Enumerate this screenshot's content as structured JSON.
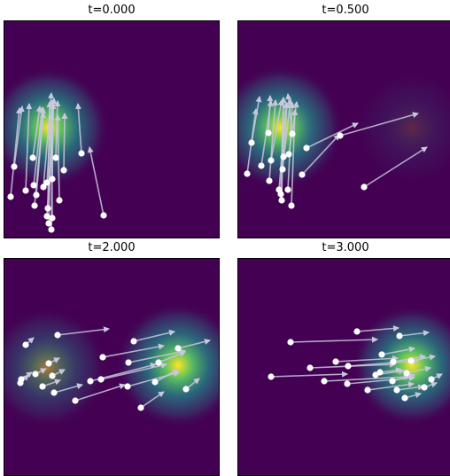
{
  "colors": {
    "background": "#440154",
    "density_mid": "#21918c",
    "density_high": "#5ec962",
    "density_peak": "#fde725",
    "arrow": "#c8c8dc",
    "point": "#ffffff",
    "frame": "#000000"
  },
  "chart_data": [
    {
      "type": "scatter",
      "title": "t=0.000",
      "xlim": [
        0,
        242
      ],
      "ylim": [
        0,
        244
      ],
      "grid": false,
      "density": [
        {
          "x": 50,
          "y": 124,
          "sigma": 26,
          "amp": 1.0
        }
      ],
      "points": [
        {
          "x": 7,
          "y": 46,
          "dx": 10,
          "dy": 100
        },
        {
          "x": 11,
          "y": 80,
          "dx": 9,
          "dy": 68
        },
        {
          "x": 24,
          "y": 53,
          "dx": 4,
          "dy": 98
        },
        {
          "x": 32,
          "y": 90,
          "dx": 8,
          "dy": 58
        },
        {
          "x": 33,
          "y": 59,
          "dx": 10,
          "dy": 88
        },
        {
          "x": 36,
          "y": 48,
          "dx": 8,
          "dy": 93
        },
        {
          "x": 34,
          "y": 36,
          "dx": 10,
          "dy": 110
        },
        {
          "x": 44,
          "y": 57,
          "dx": 9,
          "dy": 106
        },
        {
          "x": 48,
          "y": 62,
          "dx": 6,
          "dy": 93
        },
        {
          "x": 49,
          "y": 33,
          "dx": 2,
          "dy": 120
        },
        {
          "x": 48,
          "y": 24,
          "dx": 8,
          "dy": 133
        },
        {
          "x": 50,
          "y": 16,
          "dx": 4,
          "dy": 138
        },
        {
          "x": 53,
          "y": 9,
          "dx": 2,
          "dy": 142
        },
        {
          "x": 54,
          "y": 22,
          "dx": -1,
          "dy": 117
        },
        {
          "x": 54,
          "y": 66,
          "dx": 0,
          "dy": 89
        },
        {
          "x": 58,
          "y": 90,
          "dx": 2,
          "dy": 64
        },
        {
          "x": 62,
          "y": 42,
          "dx": -2,
          "dy": 96
        },
        {
          "x": 67,
          "y": 76,
          "dx": 1,
          "dy": 64
        },
        {
          "x": 87,
          "y": 95,
          "dx": -4,
          "dy": 56
        },
        {
          "x": 112,
          "y": 25,
          "dx": -16,
          "dy": 77
        }
      ]
    },
    {
      "type": "scatter",
      "title": "t=0.500",
      "xlim": [
        0,
        242
      ],
      "ylim": [
        0,
        244
      ],
      "grid": false,
      "density": [
        {
          "x": 48,
          "y": 124,
          "sigma": 27,
          "amp": 1.0
        },
        {
          "x": 196,
          "y": 124,
          "sigma": 24,
          "amp": 0.16
        }
      ],
      "points": [
        {
          "x": 10,
          "y": 72,
          "dx": 10,
          "dy": 73
        },
        {
          "x": 15,
          "y": 107,
          "dx": 9,
          "dy": 52
        },
        {
          "x": 26,
          "y": 81,
          "dx": 11,
          "dy": 73
        },
        {
          "x": 34,
          "y": 118,
          "dx": 2,
          "dy": 42
        },
        {
          "x": 35,
          "y": 64,
          "dx": 7,
          "dy": 91
        },
        {
          "x": 37,
          "y": 87,
          "dx": 12,
          "dy": 68
        },
        {
          "x": 46,
          "y": 54,
          "dx": 8,
          "dy": 98
        },
        {
          "x": 50,
          "y": 77,
          "dx": 9,
          "dy": 79
        },
        {
          "x": 48,
          "y": 49,
          "dx": 3,
          "dy": 109
        },
        {
          "x": 49,
          "y": 42,
          "dx": 2,
          "dy": 116
        },
        {
          "x": 51,
          "y": 91,
          "dx": 4,
          "dy": 61
        },
        {
          "x": 56,
          "y": 54,
          "dx": 5,
          "dy": 98
        },
        {
          "x": 57,
          "y": 94,
          "dx": 9,
          "dy": 59
        },
        {
          "x": 60,
          "y": 36,
          "dx": 4,
          "dy": 108
        },
        {
          "x": 61,
          "y": 117,
          "dx": -5,
          "dy": 45
        },
        {
          "x": 72,
          "y": 71,
          "dx": 42,
          "dy": 45
        },
        {
          "x": 77,
          "y": 101,
          "dx": 58,
          "dy": 28
        },
        {
          "x": 115,
          "y": 115,
          "dx": 88,
          "dy": 25
        },
        {
          "x": 142,
          "y": 57,
          "dx": 71,
          "dy": 45
        }
      ]
    },
    {
      "type": "scatter",
      "title": "t=2.000",
      "xlim": [
        0,
        242
      ],
      "ylim": [
        0,
        244
      ],
      "grid": false,
      "density": [
        {
          "x": 48,
          "y": 121,
          "sigma": 26,
          "amp": 0.52
        },
        {
          "x": 196,
          "y": 124,
          "sigma": 27,
          "amp": 1.0
        }
      ],
      "points": [
        {
          "x": 18,
          "y": 104,
          "dx": 9,
          "dy": 9
        },
        {
          "x": 19,
          "y": 108,
          "dx": 12,
          "dy": 8
        },
        {
          "x": 24,
          "y": 147,
          "dx": 9,
          "dy": 8
        },
        {
          "x": 35,
          "y": 114,
          "dx": 12,
          "dy": 6
        },
        {
          "x": 43,
          "y": 100,
          "dx": 20,
          "dy": 7
        },
        {
          "x": 50,
          "y": 126,
          "dx": 12,
          "dy": 6
        },
        {
          "x": 54,
          "y": 112,
          "dx": 14,
          "dy": 7
        },
        {
          "x": 56,
          "y": 93,
          "dx": 32,
          "dy": 9
        },
        {
          "x": 60,
          "y": 158,
          "dx": 58,
          "dy": 7
        },
        {
          "x": 80,
          "y": 84,
          "dx": 56,
          "dy": 18
        },
        {
          "x": 97,
          "y": 106,
          "dx": 74,
          "dy": 19
        },
        {
          "x": 109,
          "y": 108,
          "dx": 74,
          "dy": 17
        },
        {
          "x": 111,
          "y": 133,
          "dx": 69,
          "dy": 13
        },
        {
          "x": 139,
          "y": 100,
          "dx": 58,
          "dy": 16
        },
        {
          "x": 140,
          "y": 127,
          "dx": 64,
          "dy": 13
        },
        {
          "x": 146,
          "y": 151,
          "dx": 46,
          "dy": 11
        },
        {
          "x": 154,
          "y": 76,
          "dx": 26,
          "dy": 18
        },
        {
          "x": 170,
          "y": 105,
          "dx": 26,
          "dy": 14
        },
        {
          "x": 174,
          "y": 127,
          "dx": 30,
          "dy": 12
        },
        {
          "x": 196,
          "y": 143,
          "dx": 36,
          "dy": 9
        },
        {
          "x": 205,
          "y": 97,
          "dx": 15,
          "dy": 12
        }
      ]
    },
    {
      "type": "scatter",
      "title": "t=3.000",
      "xlim": [
        0,
        242
      ],
      "ylim": [
        0,
        244
      ],
      "grid": false,
      "density": [
        {
          "x": 196,
          "y": 124,
          "sigma": 26,
          "amp": 1.0
        }
      ],
      "points": [
        {
          "x": 37,
          "y": 111,
          "dx": 86,
          "dy": 3
        },
        {
          "x": 59,
          "y": 150,
          "dx": 98,
          "dy": 3
        },
        {
          "x": 81,
          "y": 121,
          "dx": 96,
          "dy": 4
        },
        {
          "x": 97,
          "y": 106,
          "dx": 96,
          "dy": 5
        },
        {
          "x": 110,
          "y": 128,
          "dx": 70,
          "dy": 4
        },
        {
          "x": 123,
          "y": 103,
          "dx": 76,
          "dy": 7
        },
        {
          "x": 124,
          "y": 123,
          "dx": 79,
          "dy": 6
        },
        {
          "x": 134,
          "y": 162,
          "dx": 47,
          "dy": 4
        },
        {
          "x": 146,
          "y": 96,
          "dx": 52,
          "dy": 7
        },
        {
          "x": 155,
          "y": 113,
          "dx": 32,
          "dy": 5
        },
        {
          "x": 160,
          "y": 116,
          "dx": 24,
          "dy": 3
        },
        {
          "x": 162,
          "y": 136,
          "dx": 37,
          "dy": 7
        },
        {
          "x": 174,
          "y": 106,
          "dx": 25,
          "dy": 7
        },
        {
          "x": 175,
          "y": 128,
          "dx": 36,
          "dy": 6
        },
        {
          "x": 179,
          "y": 96,
          "dx": 30,
          "dy": 4
        },
        {
          "x": 182,
          "y": 157,
          "dx": 33,
          "dy": 4
        },
        {
          "x": 188,
          "y": 87,
          "dx": 18,
          "dy": 5
        },
        {
          "x": 190,
          "y": 115,
          "dx": 27,
          "dy": 6
        },
        {
          "x": 195,
          "y": 129,
          "dx": 27,
          "dy": 5
        },
        {
          "x": 210,
          "y": 99,
          "dx": 14,
          "dy": 5
        },
        {
          "x": 218,
          "y": 108,
          "dx": 12,
          "dy": 6
        }
      ]
    }
  ]
}
